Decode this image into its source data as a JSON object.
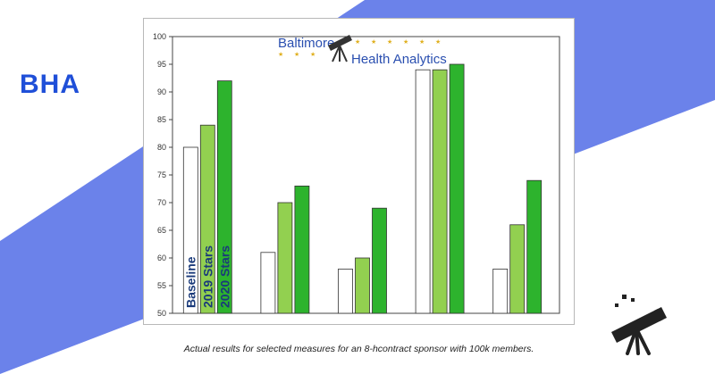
{
  "brand": {
    "text": "BHA",
    "color": "#1f4fd8"
  },
  "colors": {
    "band": "#6b82ea",
    "baseline": "#ffffff",
    "stars2019": "#92d050",
    "stars2020": "#2db32d",
    "bar_outline": "#333333",
    "label_text": "#1a3a7a"
  },
  "logo": {
    "line1": "Baltimore",
    "line2": "Health Analytics",
    "icon": "telescope-icon"
  },
  "chart_data": {
    "type": "bar",
    "categories": [
      "",
      "",
      "",
      "",
      ""
    ],
    "series": [
      {
        "name": "Baseline",
        "values": [
          80,
          61,
          58,
          94,
          58
        ]
      },
      {
        "name": "2019 Stars",
        "values": [
          84,
          70,
          60,
          94,
          66
        ]
      },
      {
        "name": "2020 Stars",
        "values": [
          92,
          73,
          69,
          95,
          74
        ]
      }
    ],
    "ylim": [
      50,
      100
    ],
    "yticks": [
      50,
      55,
      60,
      65,
      70,
      75,
      80,
      85,
      90,
      95,
      100
    ],
    "grid": false,
    "legend": "series names written vertically inside the first group of bars"
  },
  "caption": "Actual results for selected measures for an 8-hcontract sponsor with 100k members.",
  "corner_icon": "telescope-icon"
}
